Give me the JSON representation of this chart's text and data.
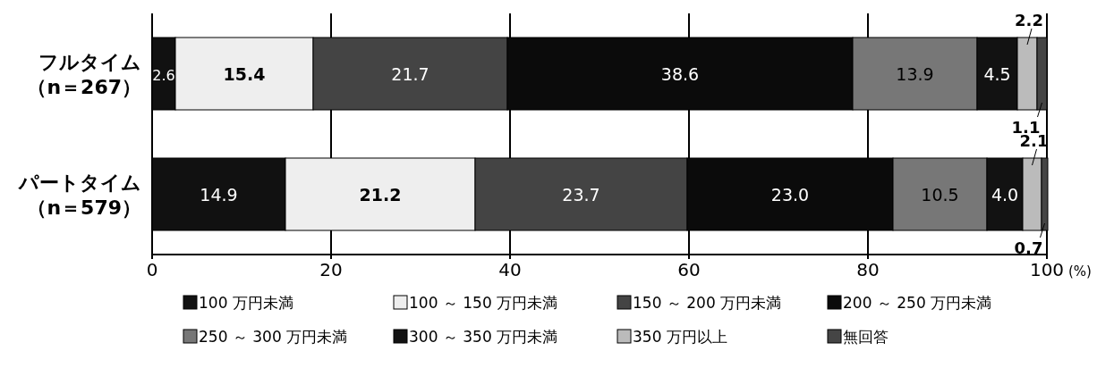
{
  "chart_data": {
    "type": "bar",
    "orientation": "horizontal",
    "stacked": true,
    "categories": [
      "フルタイム（n＝267）",
      "パートタイム（n＝579）"
    ],
    "series": [
      {
        "name": "100 万円未満",
        "color": "#111111",
        "values": [
          2.6,
          14.9
        ],
        "value_labels": [
          "2.6",
          "14.9"
        ]
      },
      {
        "name": "100 ～ 150 万円未満",
        "color": "#eeeeee",
        "values": [
          15.4,
          21.2
        ],
        "value_labels": [
          "15.4",
          "21.2"
        ]
      },
      {
        "name": "150 ～ 200 万円未満",
        "color": "#444444",
        "values": [
          21.7,
          23.7
        ],
        "value_labels": [
          "21.7",
          "23.7"
        ]
      },
      {
        "name": "200 ～ 250 万円未満",
        "color": "#0b0b0b",
        "values": [
          38.6,
          23.0
        ],
        "value_labels": [
          "38.6",
          "23.0"
        ]
      },
      {
        "name": "250 ～ 300 万円未満",
        "color": "#777777",
        "values": [
          13.9,
          10.5
        ],
        "value_labels": [
          "13.9",
          "10.5"
        ]
      },
      {
        "name": "300 ～ 350 万円未満",
        "color": "#121212",
        "values": [
          4.5,
          4.0
        ],
        "value_labels": [
          "4.5",
          "4.0"
        ]
      },
      {
        "name": "350 万円以上",
        "color": "#bbbbbb",
        "values": [
          2.2,
          2.1
        ],
        "value_labels": [
          "2.2",
          "2.1"
        ]
      },
      {
        "name": "無回答",
        "color": "#454545",
        "values": [
          1.1,
          0.7
        ],
        "value_labels": [
          "1.1",
          "0.7"
        ]
      }
    ],
    "xlim": [
      0,
      100
    ],
    "xticks": [
      0,
      20,
      40,
      60,
      80,
      100
    ],
    "xlabel": "(%)",
    "grid": "x",
    "legend": "bottom"
  }
}
